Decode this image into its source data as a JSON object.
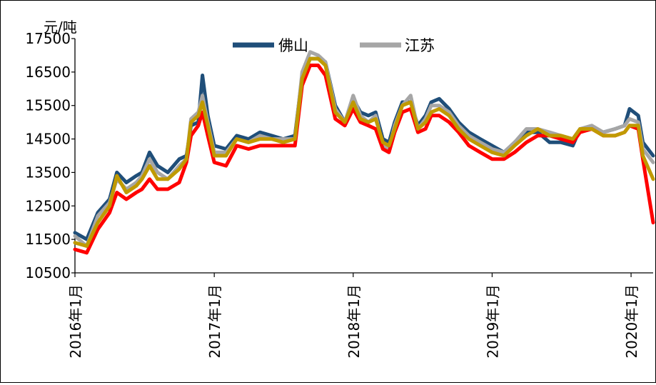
{
  "chart_data": {
    "type": "line",
    "unit_label": "元/吨",
    "xlim": [
      "2016-01-01",
      "2020-02-28"
    ],
    "ylim": [
      10500,
      17500
    ],
    "yticks": [
      10500,
      11500,
      12500,
      13500,
      14500,
      15500,
      16500,
      17500
    ],
    "xticks": [
      {
        "date": "2016-01-01",
        "label": "2016年1月"
      },
      {
        "date": "2017-01-01",
        "label": "2017年1月"
      },
      {
        "date": "2018-01-01",
        "label": "2018年1月"
      },
      {
        "date": "2019-01-01",
        "label": "2019年1月"
      },
      {
        "date": "2020-01-01",
        "label": "2020年1月"
      }
    ],
    "legend": {
      "position": "top-center"
    },
    "grid": false,
    "series": [
      {
        "name": "佛山",
        "color": "#1f4e79",
        "legend": true,
        "points": [
          [
            "2016-01-01",
            11700
          ],
          [
            "2016-02-01",
            11500
          ],
          [
            "2016-03-01",
            12300
          ],
          [
            "2016-04-01",
            12700
          ],
          [
            "2016-04-20",
            13500
          ],
          [
            "2016-05-15",
            13200
          ],
          [
            "2016-06-10",
            13400
          ],
          [
            "2016-06-25",
            13500
          ],
          [
            "2016-07-15",
            14100
          ],
          [
            "2016-08-05",
            13700
          ],
          [
            "2016-09-01",
            13500
          ],
          [
            "2016-10-01",
            13900
          ],
          [
            "2016-10-20",
            14000
          ],
          [
            "2016-11-01",
            14900
          ],
          [
            "2016-11-20",
            15000
          ],
          [
            "2016-12-01",
            16400
          ],
          [
            "2016-12-15",
            15200
          ],
          [
            "2017-01-01",
            14300
          ],
          [
            "2017-02-01",
            14200
          ],
          [
            "2017-03-01",
            14600
          ],
          [
            "2017-04-01",
            14500
          ],
          [
            "2017-05-01",
            14700
          ],
          [
            "2017-06-01",
            14600
          ],
          [
            "2017-07-01",
            14500
          ],
          [
            "2017-08-01",
            14600
          ],
          [
            "2017-08-20",
            16400
          ],
          [
            "2017-09-10",
            16900
          ],
          [
            "2017-10-01",
            16900
          ],
          [
            "2017-10-20",
            16800
          ],
          [
            "2017-11-15",
            15500
          ],
          [
            "2017-12-10",
            15000
          ],
          [
            "2018-01-01",
            15700
          ],
          [
            "2018-01-20",
            15300
          ],
          [
            "2018-02-10",
            15200
          ],
          [
            "2018-03-01",
            15300
          ],
          [
            "2018-03-20",
            14500
          ],
          [
            "2018-04-05",
            14400
          ],
          [
            "2018-04-20",
            15000
          ],
          [
            "2018-05-10",
            15600
          ],
          [
            "2018-06-01",
            15600
          ],
          [
            "2018-06-20",
            14900
          ],
          [
            "2018-07-10",
            15200
          ],
          [
            "2018-07-25",
            15600
          ],
          [
            "2018-08-15",
            15700
          ],
          [
            "2018-09-10",
            15400
          ],
          [
            "2018-10-05",
            15000
          ],
          [
            "2018-11-01",
            14700
          ],
          [
            "2018-12-01",
            14500
          ],
          [
            "2019-01-01",
            14300
          ],
          [
            "2019-02-01",
            14100
          ],
          [
            "2019-03-01",
            14400
          ],
          [
            "2019-04-01",
            14700
          ],
          [
            "2019-05-01",
            14700
          ],
          [
            "2019-06-01",
            14400
          ],
          [
            "2019-07-01",
            14400
          ],
          [
            "2019-08-01",
            14300
          ],
          [
            "2019-08-20",
            14800
          ],
          [
            "2019-09-20",
            14800
          ],
          [
            "2019-10-20",
            14700
          ],
          [
            "2019-11-20",
            14800
          ],
          [
            "2019-12-15",
            14900
          ],
          [
            "2019-12-28",
            15400
          ],
          [
            "2020-01-20",
            15200
          ],
          [
            "2020-02-01",
            14400
          ],
          [
            "2020-02-28",
            14000
          ]
        ]
      },
      {
        "name": "江苏",
        "color": "#a6a6a6",
        "legend": true,
        "points": [
          [
            "2016-01-01",
            11600
          ],
          [
            "2016-02-01",
            11300
          ],
          [
            "2016-03-01",
            12200
          ],
          [
            "2016-04-01",
            12600
          ],
          [
            "2016-04-20",
            13300
          ],
          [
            "2016-05-15",
            13000
          ],
          [
            "2016-06-10",
            13200
          ],
          [
            "2016-06-25",
            13400
          ],
          [
            "2016-07-15",
            13900
          ],
          [
            "2016-08-05",
            13500
          ],
          [
            "2016-09-01",
            13300
          ],
          [
            "2016-10-01",
            13700
          ],
          [
            "2016-10-20",
            13900
          ],
          [
            "2016-11-01",
            15100
          ],
          [
            "2016-11-20",
            15300
          ],
          [
            "2016-12-01",
            15800
          ],
          [
            "2016-12-15",
            15000
          ],
          [
            "2017-01-01",
            14100
          ],
          [
            "2017-02-01",
            14100
          ],
          [
            "2017-03-01",
            14500
          ],
          [
            "2017-04-01",
            14400
          ],
          [
            "2017-05-01",
            14600
          ],
          [
            "2017-06-01",
            14500
          ],
          [
            "2017-07-01",
            14500
          ],
          [
            "2017-08-01",
            14500
          ],
          [
            "2017-08-20",
            16500
          ],
          [
            "2017-09-10",
            17100
          ],
          [
            "2017-10-01",
            17000
          ],
          [
            "2017-10-20",
            16800
          ],
          [
            "2017-11-15",
            15400
          ],
          [
            "2017-12-10",
            15000
          ],
          [
            "2018-01-01",
            15800
          ],
          [
            "2018-01-20",
            15200
          ],
          [
            "2018-02-10",
            15000
          ],
          [
            "2018-03-01",
            15200
          ],
          [
            "2018-03-20",
            14300
          ],
          [
            "2018-04-05",
            14200
          ],
          [
            "2018-04-20",
            14900
          ],
          [
            "2018-05-10",
            15500
          ],
          [
            "2018-06-01",
            15800
          ],
          [
            "2018-06-20",
            14800
          ],
          [
            "2018-07-10",
            15100
          ],
          [
            "2018-07-25",
            15500
          ],
          [
            "2018-08-15",
            15500
          ],
          [
            "2018-09-10",
            15300
          ],
          [
            "2018-10-05",
            14900
          ],
          [
            "2018-11-01",
            14600
          ],
          [
            "2018-12-01",
            14400
          ],
          [
            "2019-01-01",
            14200
          ],
          [
            "2019-02-01",
            14100
          ],
          [
            "2019-03-01",
            14400
          ],
          [
            "2019-04-01",
            14800
          ],
          [
            "2019-05-01",
            14800
          ],
          [
            "2019-06-01",
            14700
          ],
          [
            "2019-07-01",
            14600
          ],
          [
            "2019-08-01",
            14500
          ],
          [
            "2019-08-20",
            14800
          ],
          [
            "2019-09-20",
            14900
          ],
          [
            "2019-10-20",
            14700
          ],
          [
            "2019-11-20",
            14800
          ],
          [
            "2019-12-15",
            14900
          ],
          [
            "2019-12-28",
            15100
          ],
          [
            "2020-01-20",
            15000
          ],
          [
            "2020-02-01",
            14200
          ],
          [
            "2020-02-28",
            13800
          ]
        ]
      },
      {
        "name": "",
        "color": "#ff0000",
        "legend": false,
        "points": [
          [
            "2016-01-01",
            11200
          ],
          [
            "2016-02-01",
            11100
          ],
          [
            "2016-03-01",
            11800
          ],
          [
            "2016-04-01",
            12300
          ],
          [
            "2016-04-20",
            12900
          ],
          [
            "2016-05-15",
            12700
          ],
          [
            "2016-06-10",
            12900
          ],
          [
            "2016-06-25",
            13000
          ],
          [
            "2016-07-15",
            13300
          ],
          [
            "2016-08-05",
            13000
          ],
          [
            "2016-09-01",
            13000
          ],
          [
            "2016-10-01",
            13200
          ],
          [
            "2016-10-20",
            13800
          ],
          [
            "2016-11-01",
            14600
          ],
          [
            "2016-11-20",
            14900
          ],
          [
            "2016-12-01",
            15300
          ],
          [
            "2016-12-15",
            14600
          ],
          [
            "2017-01-01",
            13800
          ],
          [
            "2017-02-01",
            13700
          ],
          [
            "2017-03-01",
            14300
          ],
          [
            "2017-04-01",
            14200
          ],
          [
            "2017-05-01",
            14300
          ],
          [
            "2017-06-01",
            14300
          ],
          [
            "2017-07-01",
            14300
          ],
          [
            "2017-08-01",
            14300
          ],
          [
            "2017-08-20",
            16100
          ],
          [
            "2017-09-10",
            16700
          ],
          [
            "2017-10-01",
            16700
          ],
          [
            "2017-10-20",
            16400
          ],
          [
            "2017-11-15",
            15100
          ],
          [
            "2017-12-10",
            14900
          ],
          [
            "2018-01-01",
            15400
          ],
          [
            "2018-01-20",
            15000
          ],
          [
            "2018-02-10",
            14900
          ],
          [
            "2018-03-01",
            14800
          ],
          [
            "2018-03-20",
            14200
          ],
          [
            "2018-04-05",
            14100
          ],
          [
            "2018-04-20",
            14700
          ],
          [
            "2018-05-10",
            15300
          ],
          [
            "2018-06-01",
            15400
          ],
          [
            "2018-06-20",
            14700
          ],
          [
            "2018-07-10",
            14800
          ],
          [
            "2018-07-25",
            15200
          ],
          [
            "2018-08-15",
            15200
          ],
          [
            "2018-09-10",
            15000
          ],
          [
            "2018-10-05",
            14700
          ],
          [
            "2018-11-01",
            14300
          ],
          [
            "2018-12-01",
            14100
          ],
          [
            "2019-01-01",
            13900
          ],
          [
            "2019-02-01",
            13900
          ],
          [
            "2019-03-01",
            14100
          ],
          [
            "2019-04-01",
            14400
          ],
          [
            "2019-05-01",
            14600
          ],
          [
            "2019-06-01",
            14600
          ],
          [
            "2019-07-01",
            14500
          ],
          [
            "2019-08-01",
            14400
          ],
          [
            "2019-08-20",
            14700
          ],
          [
            "2019-09-20",
            14800
          ],
          [
            "2019-10-20",
            14600
          ],
          [
            "2019-11-20",
            14600
          ],
          [
            "2019-12-15",
            14700
          ],
          [
            "2019-12-28",
            14900
          ],
          [
            "2020-01-20",
            14800
          ],
          [
            "2020-02-01",
            13900
          ],
          [
            "2020-02-28",
            12000
          ]
        ]
      },
      {
        "name": "",
        "color": "#c09a00",
        "legend": false,
        "points": [
          [
            "2016-01-01",
            11400
          ],
          [
            "2016-02-01",
            11300
          ],
          [
            "2016-03-01",
            12000
          ],
          [
            "2016-04-01",
            12500
          ],
          [
            "2016-04-20",
            13400
          ],
          [
            "2016-05-15",
            12900
          ],
          [
            "2016-06-10",
            13100
          ],
          [
            "2016-06-25",
            13300
          ],
          [
            "2016-07-15",
            13700
          ],
          [
            "2016-08-05",
            13300
          ],
          [
            "2016-09-01",
            13300
          ],
          [
            "2016-10-01",
            13600
          ],
          [
            "2016-10-20",
            13900
          ],
          [
            "2016-11-01",
            15000
          ],
          [
            "2016-11-20",
            15200
          ],
          [
            "2016-12-01",
            15600
          ],
          [
            "2016-12-15",
            14900
          ],
          [
            "2017-01-01",
            14000
          ],
          [
            "2017-02-01",
            14000
          ],
          [
            "2017-03-01",
            14500
          ],
          [
            "2017-04-01",
            14400
          ],
          [
            "2017-05-01",
            14500
          ],
          [
            "2017-06-01",
            14500
          ],
          [
            "2017-07-01",
            14400
          ],
          [
            "2017-08-01",
            14500
          ],
          [
            "2017-08-20",
            16300
          ],
          [
            "2017-09-10",
            16900
          ],
          [
            "2017-10-01",
            16900
          ],
          [
            "2017-10-20",
            16700
          ],
          [
            "2017-11-15",
            15300
          ],
          [
            "2017-12-10",
            15000
          ],
          [
            "2018-01-01",
            15600
          ],
          [
            "2018-01-20",
            15100
          ],
          [
            "2018-02-10",
            15000
          ],
          [
            "2018-03-01",
            15100
          ],
          [
            "2018-03-20",
            14400
          ],
          [
            "2018-04-05",
            14300
          ],
          [
            "2018-04-20",
            14800
          ],
          [
            "2018-05-10",
            15500
          ],
          [
            "2018-06-01",
            15600
          ],
          [
            "2018-06-20",
            14800
          ],
          [
            "2018-07-10",
            15000
          ],
          [
            "2018-07-25",
            15300
          ],
          [
            "2018-08-15",
            15400
          ],
          [
            "2018-09-10",
            15200
          ],
          [
            "2018-10-05",
            14800
          ],
          [
            "2018-11-01",
            14500
          ],
          [
            "2018-12-01",
            14300
          ],
          [
            "2019-01-01",
            14100
          ],
          [
            "2019-02-01",
            14000
          ],
          [
            "2019-03-01",
            14300
          ],
          [
            "2019-04-01",
            14600
          ],
          [
            "2019-05-01",
            14800
          ],
          [
            "2019-06-01",
            14600
          ],
          [
            "2019-07-01",
            14600
          ],
          [
            "2019-08-01",
            14500
          ],
          [
            "2019-08-20",
            14800
          ],
          [
            "2019-09-20",
            14800
          ],
          [
            "2019-10-20",
            14600
          ],
          [
            "2019-11-20",
            14600
          ],
          [
            "2019-12-15",
            14700
          ],
          [
            "2019-12-28",
            14900
          ],
          [
            "2020-01-20",
            14900
          ],
          [
            "2020-02-01",
            14000
          ],
          [
            "2020-02-28",
            13300
          ]
        ]
      }
    ]
  }
}
